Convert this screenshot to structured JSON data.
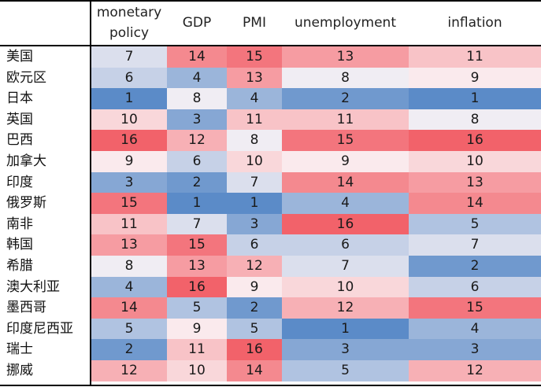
{
  "chart_data": {
    "type": "heatmap",
    "columns": [
      "monetary\npolicy",
      "GDP",
      "PMI",
      "unemployment",
      "inflation"
    ],
    "rows": [
      "美国",
      "欧元区",
      "日本",
      "英国",
      "巴西",
      "加拿大",
      "印度",
      "俄罗斯",
      "南非",
      "韩国",
      "希腊",
      "澳大利亚",
      "墨西哥",
      "印度尼西亚",
      "瑞士",
      "挪威"
    ],
    "values": [
      [
        7,
        14,
        15,
        13,
        11
      ],
      [
        6,
        4,
        13,
        8,
        9
      ],
      [
        1,
        8,
        4,
        2,
        1
      ],
      [
        10,
        3,
        11,
        11,
        8
      ],
      [
        16,
        12,
        8,
        15,
        16
      ],
      [
        9,
        6,
        10,
        9,
        10
      ],
      [
        3,
        2,
        7,
        14,
        13
      ],
      [
        15,
        1,
        1,
        4,
        14
      ],
      [
        11,
        7,
        3,
        16,
        5
      ],
      [
        13,
        15,
        6,
        6,
        7
      ],
      [
        8,
        13,
        12,
        7,
        2
      ],
      [
        4,
        16,
        9,
        10,
        6
      ],
      [
        14,
        5,
        2,
        12,
        15
      ],
      [
        5,
        9,
        5,
        1,
        4
      ],
      [
        2,
        11,
        16,
        3,
        3
      ],
      [
        12,
        10,
        14,
        5,
        12
      ]
    ],
    "value_range": [
      1,
      16
    ],
    "colors": {
      "low": "#5b8bc8",
      "mid": "#fbf4f6",
      "high": "#f2626a"
    }
  }
}
